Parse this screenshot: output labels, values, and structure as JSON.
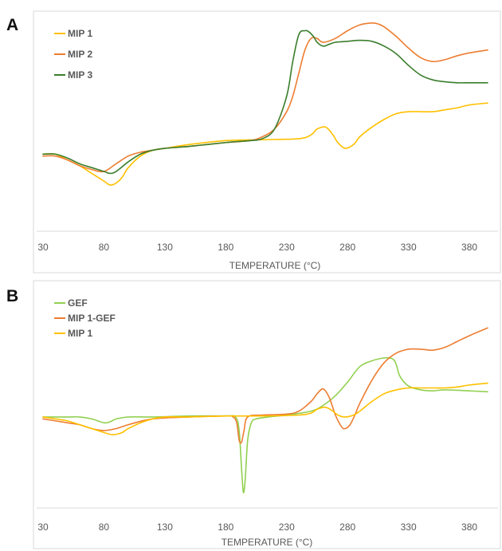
{
  "chart_data": [
    {
      "type": "line",
      "panel_label": "A",
      "xlabel": "TEMPERATURE (°C)",
      "ylabel": "",
      "x_ticks": [
        30,
        80,
        130,
        180,
        230,
        280,
        330,
        380
      ],
      "xlim": [
        30,
        395
      ],
      "ylim": [
        -0.1,
        1.0
      ],
      "grid": false,
      "legend_position": "top-left",
      "series": [
        {
          "name": "MIP 1",
          "color": "#ffc000",
          "x": [
            30,
            40,
            50,
            60,
            70,
            80,
            85,
            90,
            95,
            100,
            110,
            120,
            130,
            150,
            180,
            210,
            240,
            250,
            255,
            262,
            268,
            272,
            278,
            285,
            290,
            300,
            310,
            320,
            330,
            340,
            350,
            360,
            370,
            380,
            395
          ],
          "y": [
            0.3,
            0.3,
            0.27,
            0.24,
            0.2,
            0.16,
            0.14,
            0.15,
            0.18,
            0.23,
            0.29,
            0.32,
            0.33,
            0.35,
            0.37,
            0.375,
            0.38,
            0.4,
            0.43,
            0.44,
            0.4,
            0.36,
            0.33,
            0.35,
            0.39,
            0.44,
            0.48,
            0.51,
            0.52,
            0.52,
            0.52,
            0.53,
            0.54,
            0.555,
            0.565
          ]
        },
        {
          "name": "MIP 2",
          "color": "#ed7d31",
          "x": [
            30,
            40,
            50,
            60,
            70,
            80,
            90,
            100,
            110,
            120,
            130,
            150,
            180,
            200,
            210,
            220,
            230,
            235,
            240,
            245,
            250,
            255,
            260,
            270,
            280,
            290,
            300,
            305,
            310,
            320,
            330,
            340,
            350,
            360,
            370,
            380,
            395
          ],
          "y": [
            0.29,
            0.29,
            0.27,
            0.24,
            0.22,
            0.21,
            0.25,
            0.29,
            0.31,
            0.32,
            0.33,
            0.34,
            0.36,
            0.37,
            0.39,
            0.43,
            0.52,
            0.6,
            0.72,
            0.84,
            0.9,
            0.9,
            0.88,
            0.9,
            0.94,
            0.97,
            0.98,
            0.975,
            0.96,
            0.91,
            0.85,
            0.8,
            0.78,
            0.79,
            0.81,
            0.825,
            0.84
          ]
        },
        {
          "name": "MIP 3",
          "color": "#3a7d2c",
          "x": [
            30,
            40,
            50,
            60,
            70,
            80,
            85,
            90,
            100,
            110,
            120,
            130,
            150,
            180,
            200,
            210,
            220,
            230,
            235,
            240,
            245,
            248,
            252,
            255,
            260,
            265,
            270,
            280,
            290,
            300,
            310,
            320,
            330,
            340,
            350,
            360,
            370,
            380,
            395
          ],
          "y": [
            0.3,
            0.3,
            0.28,
            0.25,
            0.23,
            0.21,
            0.2,
            0.21,
            0.26,
            0.3,
            0.32,
            0.33,
            0.34,
            0.36,
            0.37,
            0.38,
            0.43,
            0.6,
            0.78,
            0.92,
            0.94,
            0.935,
            0.91,
            0.88,
            0.86,
            0.87,
            0.88,
            0.885,
            0.89,
            0.885,
            0.86,
            0.82,
            0.76,
            0.71,
            0.685,
            0.675,
            0.67,
            0.67,
            0.67
          ]
        }
      ]
    },
    {
      "type": "line",
      "panel_label": "B",
      "xlabel": "TEMPERATURE (°C)",
      "ylabel": "",
      "x_ticks": [
        30,
        80,
        130,
        180,
        230,
        280,
        330,
        380
      ],
      "xlim": [
        30,
        395
      ],
      "ylim": [
        -0.1,
        1.0
      ],
      "grid": false,
      "legend_position": "top-left",
      "series": [
        {
          "name": "GEF",
          "color": "#92d050",
          "x": [
            30,
            50,
            60,
            70,
            80,
            85,
            90,
            100,
            120,
            150,
            180,
            188,
            191,
            193,
            194.5,
            196,
            198,
            201,
            205,
            215,
            230,
            250,
            260,
            270,
            280,
            290,
            300,
            310,
            317,
            320,
            323,
            330,
            340,
            350,
            360,
            380,
            395
          ],
          "y": [
            0.37,
            0.37,
            0.37,
            0.36,
            0.34,
            0.345,
            0.36,
            0.37,
            0.37,
            0.375,
            0.375,
            0.37,
            0.3,
            0.1,
            -0.02,
            0.05,
            0.25,
            0.34,
            0.36,
            0.37,
            0.38,
            0.4,
            0.43,
            0.48,
            0.55,
            0.63,
            0.66,
            0.675,
            0.67,
            0.64,
            0.58,
            0.53,
            0.51,
            0.505,
            0.51,
            0.505,
            0.5
          ]
        },
        {
          "name": "MIP 1-GEF",
          "color": "#ed7d31",
          "x": [
            30,
            40,
            50,
            60,
            70,
            80,
            90,
            100,
            120,
            150,
            180,
            186,
            189,
            191,
            193,
            195,
            198,
            210,
            230,
            240,
            250,
            255,
            260,
            265,
            270,
            275,
            278,
            282,
            286,
            290,
            300,
            310,
            320,
            330,
            340,
            350,
            360,
            370,
            380,
            395
          ],
          "y": [
            0.36,
            0.35,
            0.34,
            0.33,
            0.31,
            0.3,
            0.31,
            0.33,
            0.36,
            0.37,
            0.375,
            0.37,
            0.34,
            0.25,
            0.24,
            0.3,
            0.37,
            0.38,
            0.385,
            0.4,
            0.45,
            0.49,
            0.515,
            0.47,
            0.38,
            0.32,
            0.31,
            0.33,
            0.38,
            0.44,
            0.56,
            0.65,
            0.7,
            0.72,
            0.72,
            0.715,
            0.73,
            0.76,
            0.79,
            0.83
          ]
        },
        {
          "name": "MIP 1",
          "color": "#ffc000",
          "x": [
            30,
            40,
            50,
            60,
            70,
            80,
            85,
            90,
            95,
            100,
            110,
            120,
            130,
            150,
            180,
            210,
            240,
            250,
            255,
            262,
            268,
            272,
            278,
            285,
            290,
            300,
            310,
            320,
            330,
            340,
            350,
            360,
            370,
            380,
            395
          ],
          "y": [
            0.37,
            0.36,
            0.35,
            0.33,
            0.31,
            0.29,
            0.28,
            0.28,
            0.29,
            0.31,
            0.34,
            0.36,
            0.37,
            0.37,
            0.375,
            0.375,
            0.38,
            0.39,
            0.41,
            0.42,
            0.4,
            0.38,
            0.37,
            0.38,
            0.4,
            0.45,
            0.49,
            0.51,
            0.52,
            0.52,
            0.52,
            0.52,
            0.525,
            0.535,
            0.545
          ]
        }
      ]
    }
  ]
}
